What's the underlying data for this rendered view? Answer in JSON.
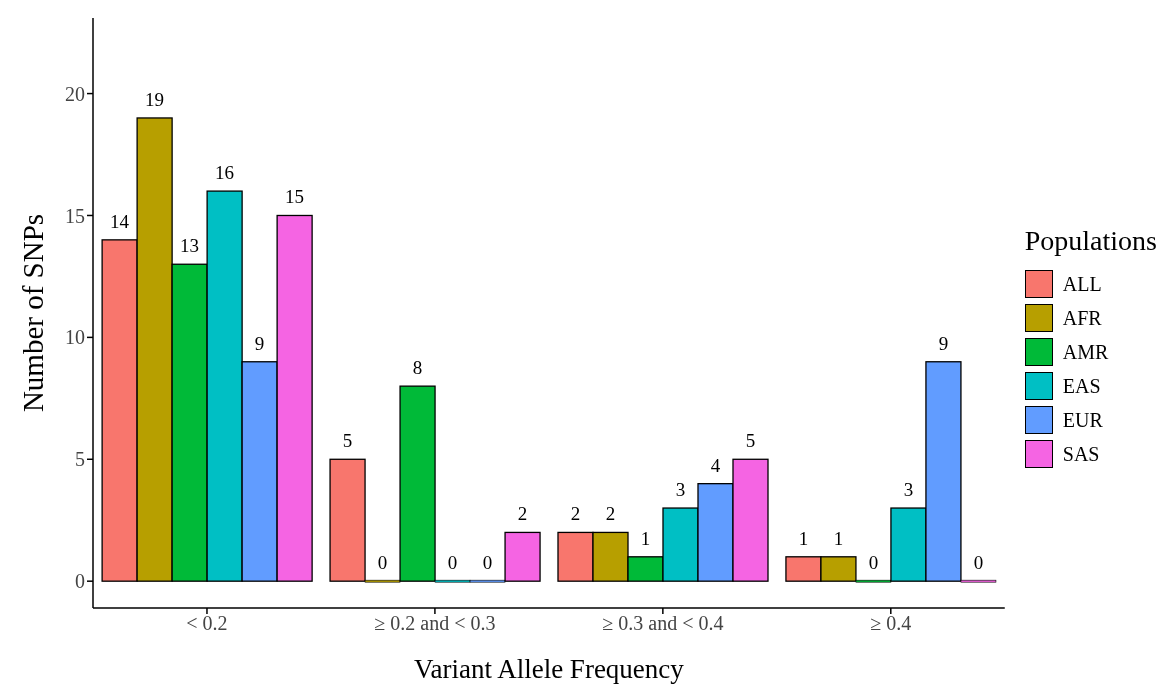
{
  "chart_data": {
    "type": "bar",
    "xlabel": "Variant Allele Frequency",
    "ylabel": "Number of SNPs",
    "legend_title": "Populations",
    "legend": "right",
    "grid": false,
    "data_labels": true,
    "categories": [
      "< 0.2",
      "≥ 0.2 and < 0.3",
      "≥ 0.3 and < 0.4",
      "≥ 0.4"
    ],
    "ylim": [
      -1.1,
      23.1
    ],
    "yticks": [
      0,
      5,
      10,
      15,
      20
    ],
    "series": [
      {
        "name": "ALL",
        "color": "#f8766d",
        "values": [
          14,
          5,
          2,
          1
        ]
      },
      {
        "name": "AFR",
        "color": "#b79f00",
        "values": [
          19,
          0,
          2,
          1
        ]
      },
      {
        "name": "AMR",
        "color": "#00ba38",
        "values": [
          13,
          8,
          1,
          0
        ]
      },
      {
        "name": "EAS",
        "color": "#00bfc4",
        "values": [
          16,
          0,
          3,
          3
        ]
      },
      {
        "name": "EUR",
        "color": "#619cff",
        "values": [
          9,
          0,
          4,
          9
        ]
      },
      {
        "name": "SAS",
        "color": "#f564e3",
        "values": [
          15,
          2,
          5,
          0
        ]
      }
    ]
  }
}
